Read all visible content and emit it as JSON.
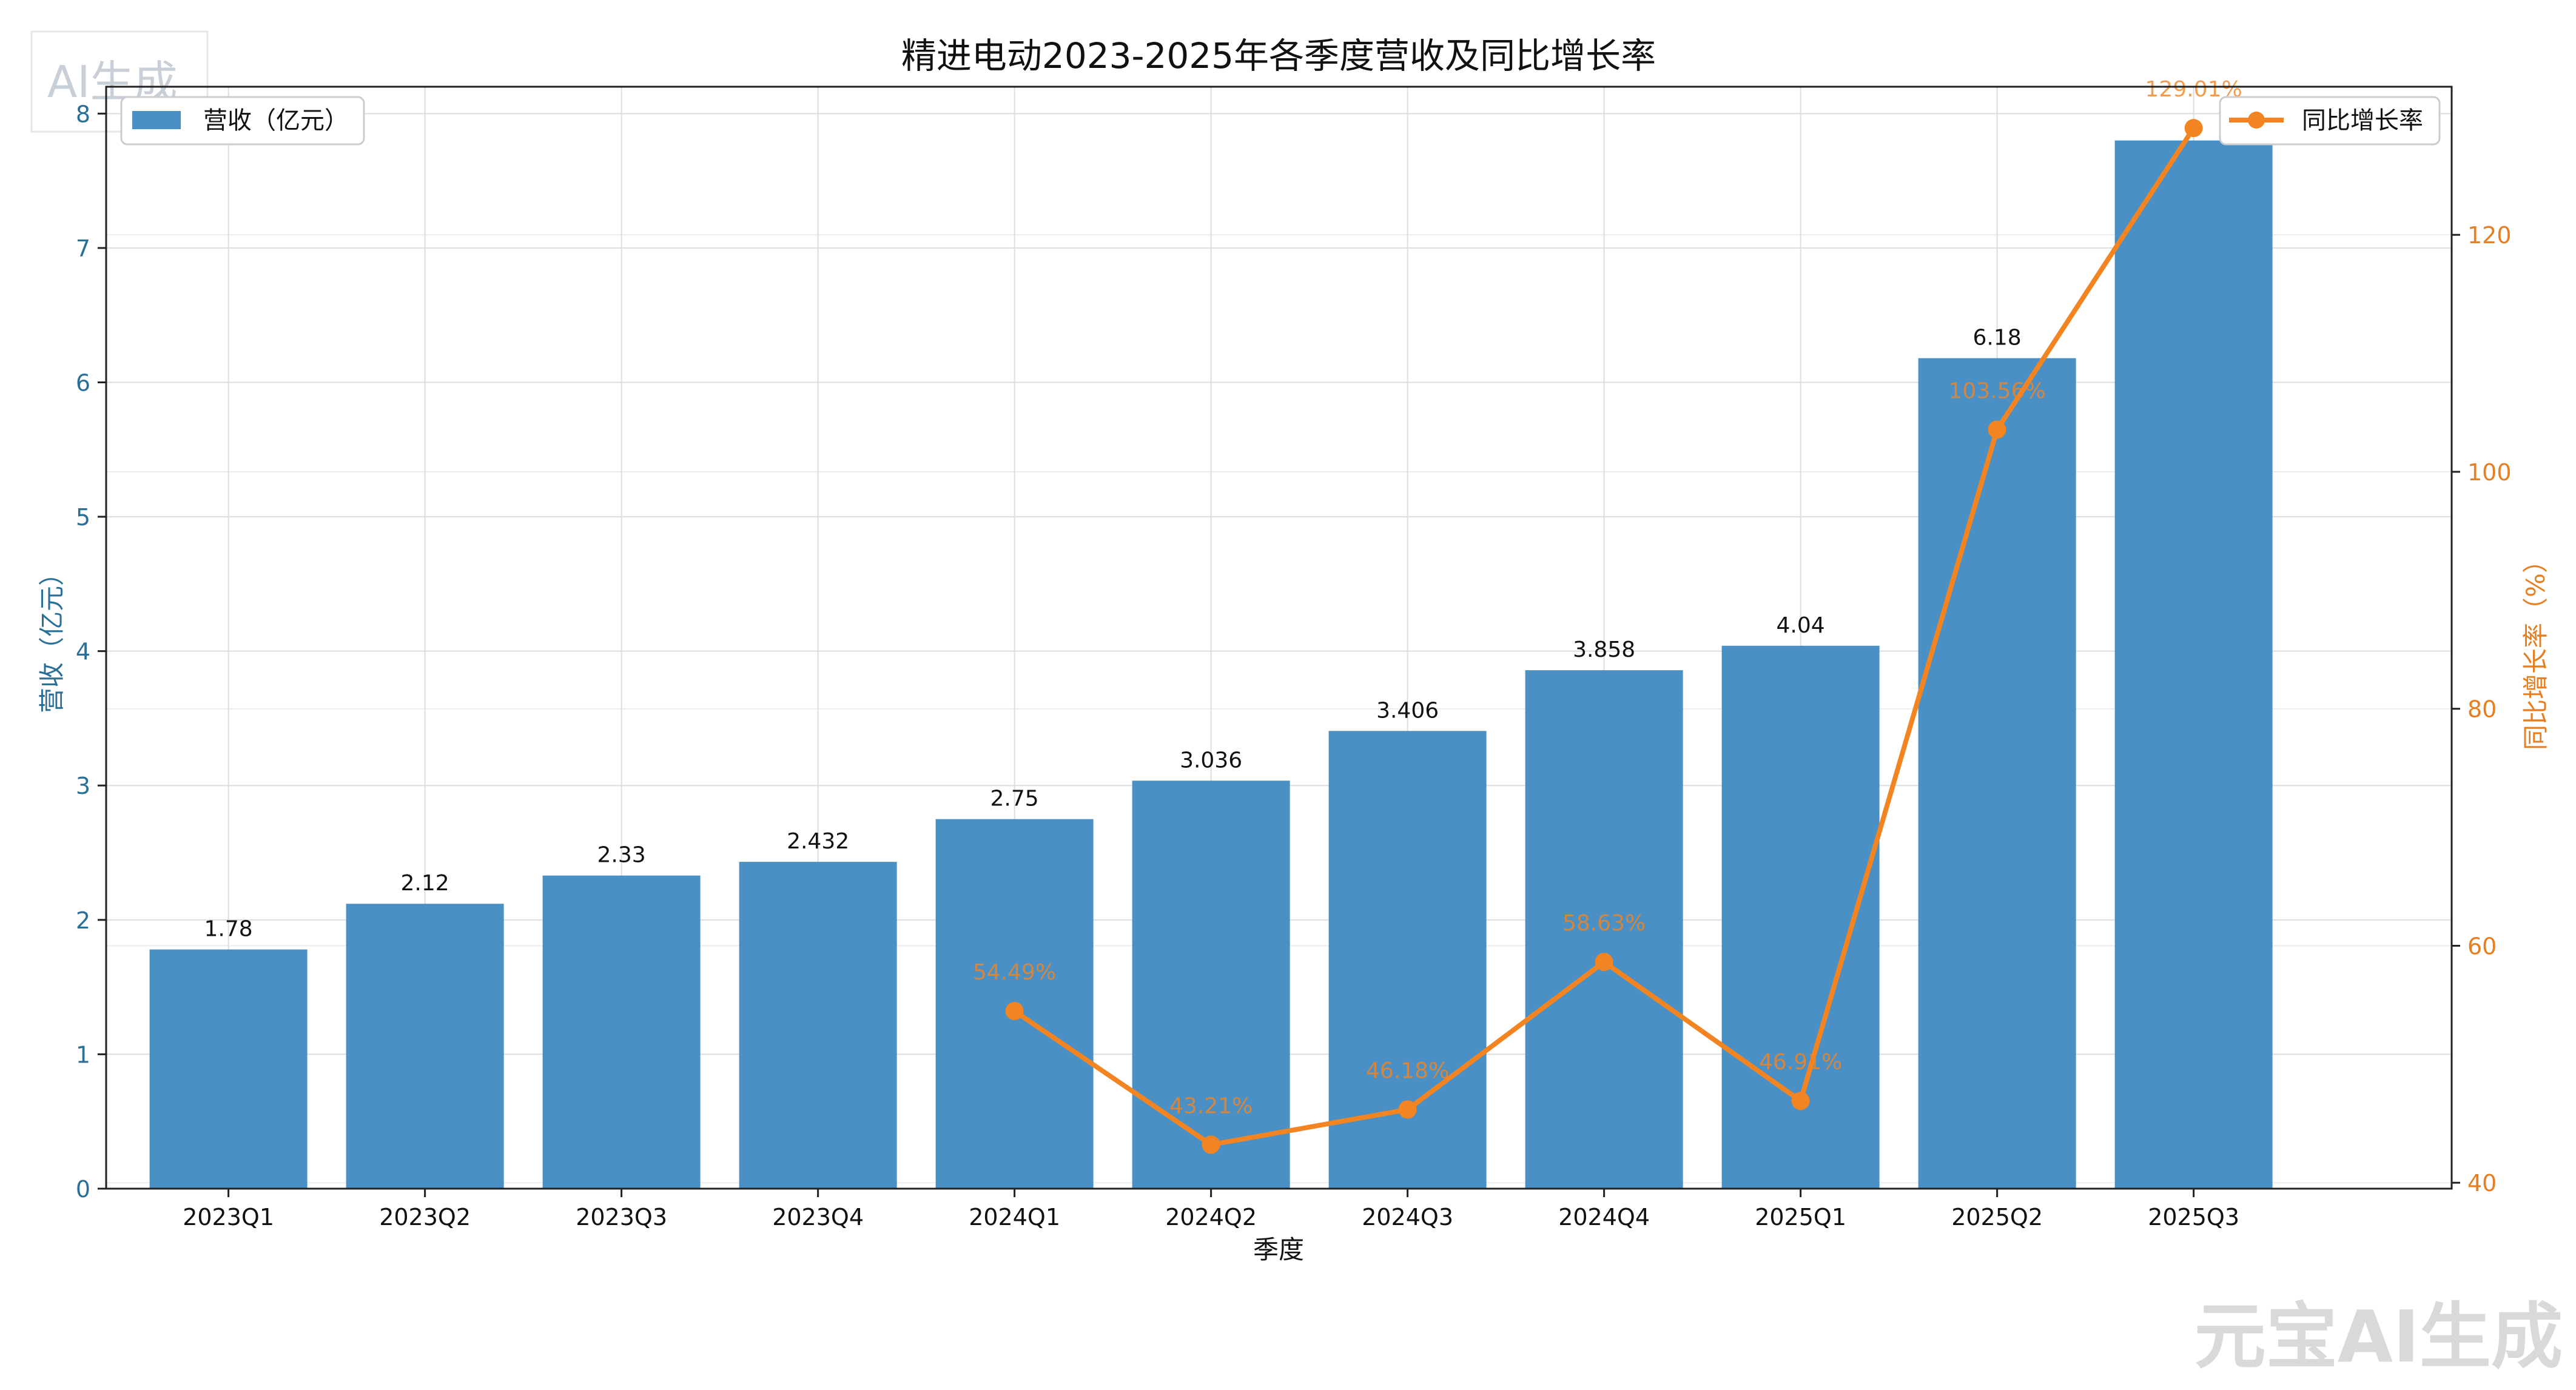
{
  "watermarks": {
    "top_left": "AI生成",
    "bottom_right": "元宝AI生成"
  },
  "colors": {
    "bar": "#4a90c4",
    "line": "#f28522",
    "left_axis": "#2a6f97",
    "right_axis": "#e67e22",
    "grid": "#dddddd",
    "axis": "#222222"
  },
  "chart_data": {
    "type": "bar",
    "title": "精进电动2023-2025年各季度营收及同比增长率",
    "xlabel": "季度",
    "ylabel": "营收（亿元）",
    "y2label": "同比增长率（%）",
    "categories": [
      "2023Q1",
      "2023Q2",
      "2023Q3",
      "2023Q4",
      "2024Q1",
      "2024Q2",
      "2024Q3",
      "2024Q4",
      "2025Q1",
      "2025Q2",
      "2025Q3"
    ],
    "ylim": [
      0,
      8.2
    ],
    "y2lim": [
      39.5,
      132.5
    ],
    "y_ticks": [
      0,
      1,
      2,
      3,
      4,
      5,
      6,
      7,
      8
    ],
    "y2_ticks": [
      40,
      60,
      80,
      100,
      120
    ],
    "grid": true,
    "series": [
      {
        "name": "营收（亿元）",
        "type": "bar",
        "axis": "left",
        "values": [
          1.78,
          2.12,
          2.33,
          2.432,
          2.75,
          3.036,
          3.406,
          3.858,
          4.04,
          6.18,
          7.8
        ],
        "labels": [
          "1.78",
          "2.12",
          "2.33",
          "2.432",
          "2.75",
          "3.036",
          "3.406",
          "3.858",
          "4.04",
          "6.18",
          ""
        ]
      },
      {
        "name": "同比增长率",
        "type": "line",
        "axis": "right",
        "values": [
          null,
          null,
          null,
          null,
          54.49,
          43.21,
          46.18,
          58.63,
          46.91,
          103.56,
          129.01
        ],
        "labels": [
          "",
          "",
          "",
          "",
          "54.49%",
          "43.21%",
          "46.18%",
          "58.63%",
          "46.91%",
          "103.56%",
          "129.01%"
        ]
      }
    ],
    "legend_left": "top-left",
    "legend_right": "top-right"
  }
}
